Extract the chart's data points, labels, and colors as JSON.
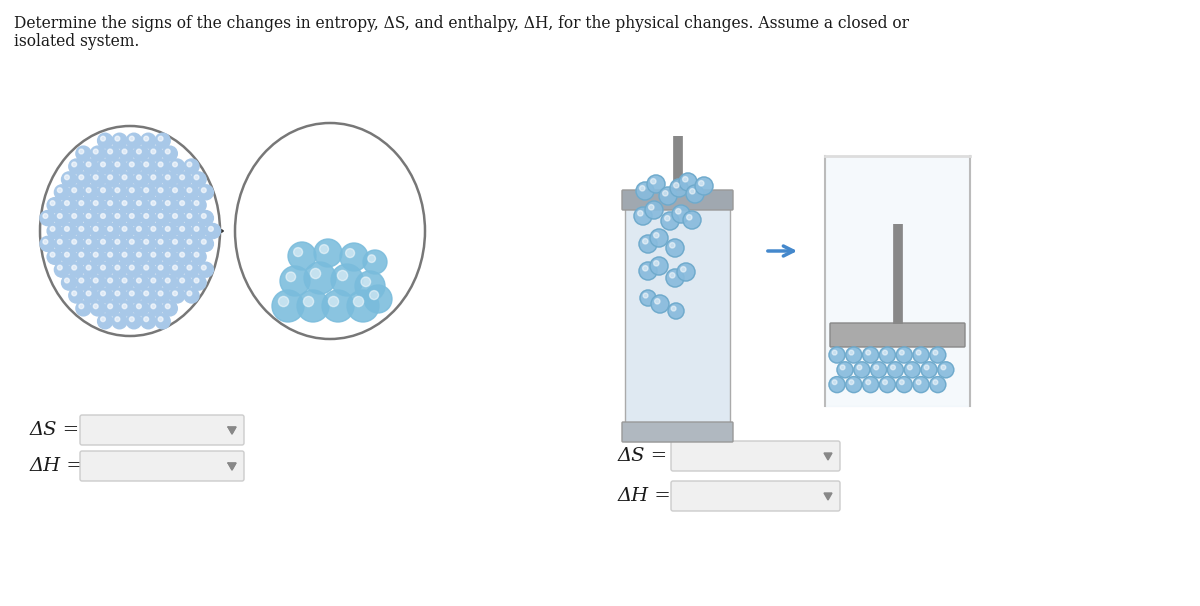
{
  "title_line1": "Determine the signs of the changes in entropy, ΔS, and enthalpy, ΔH, for the physical changes. Assume a closed or",
  "title_line2": "isolated system.",
  "bg_color": "#ffffff",
  "text_color": "#1a1a1a",
  "delta_s_label": "ΔS =",
  "delta_h_label": "ΔH =",
  "dropdown_bg": "#f0f0f0",
  "dropdown_border": "#cccccc",
  "circle_color": "#777777",
  "ball_color_solid": "#a8c8e8",
  "ball_color_liquid": "#7abcdc",
  "ball_highlight": "#ddeeff",
  "arrow_color_black": "#333333",
  "arrow_color_blue": "#4488cc",
  "cyl_body": "#dae6f0",
  "cyl_cap": "#999999",
  "cyl_rod": "#888888",
  "beaker_fill": "#e8f0f8",
  "beaker_border": "#bbbbbb",
  "piston_color": "#aaaaaa",
  "gas_ball_color": "#88bbdd",
  "gas_ring_color": "#5599bb"
}
